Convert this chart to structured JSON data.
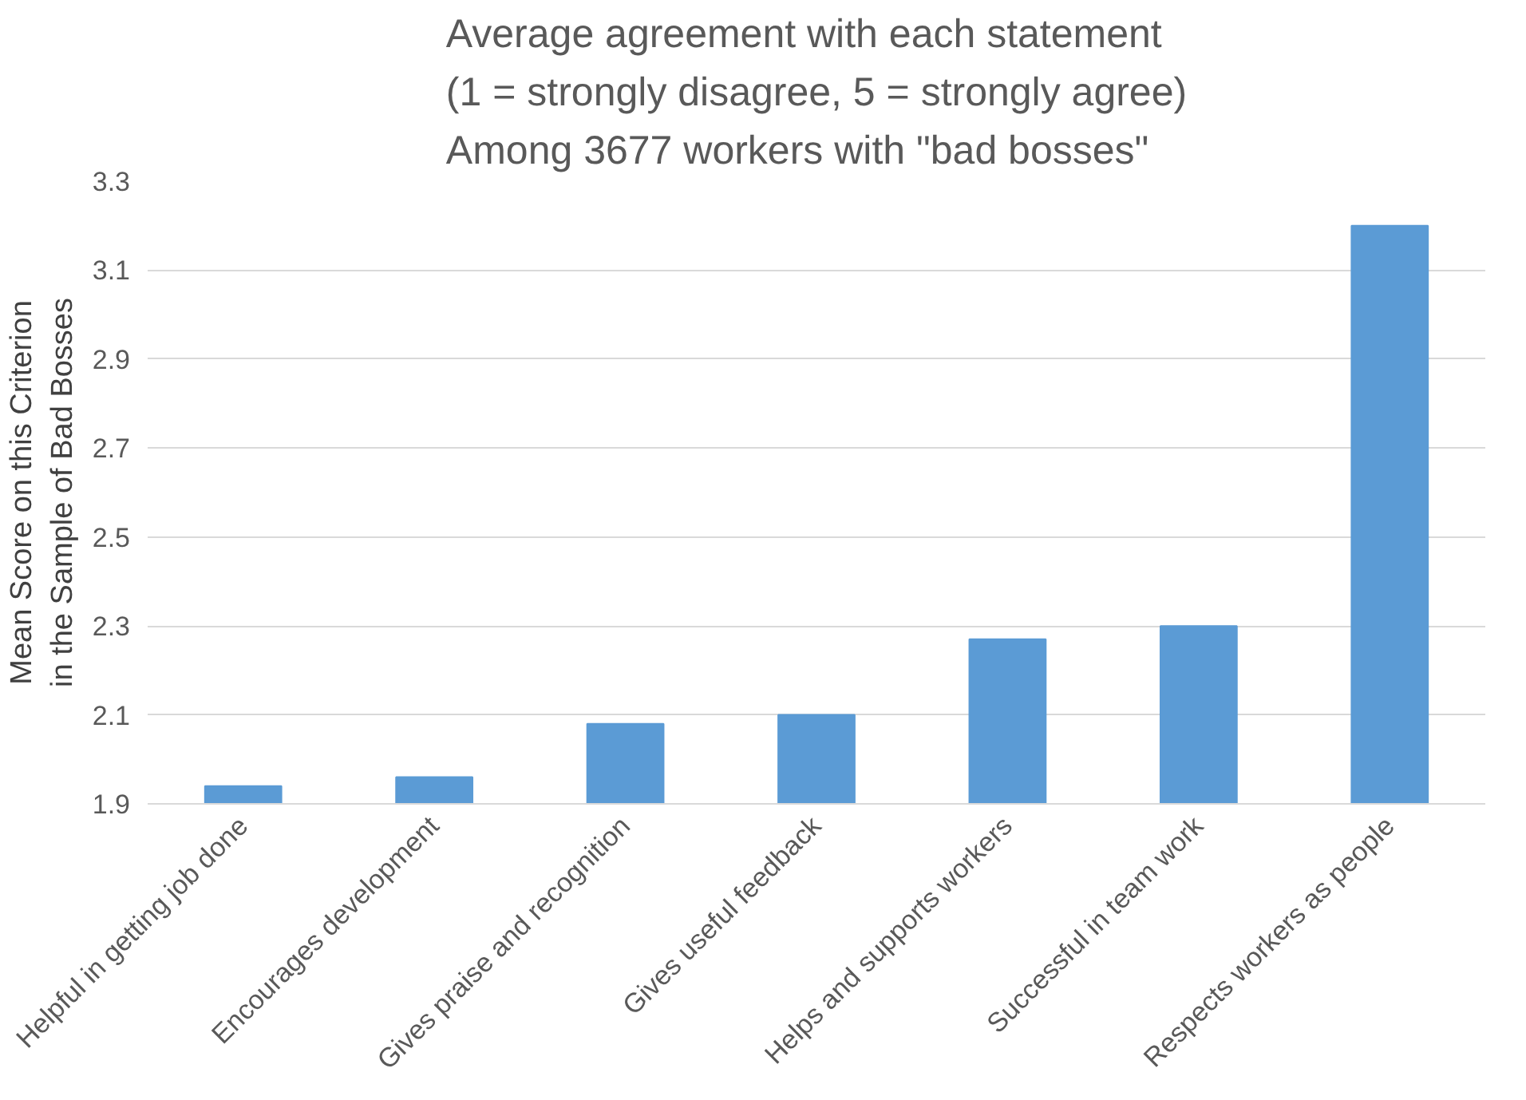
{
  "chart_data": {
    "type": "bar",
    "title": "Average agreement with each statement\n(1 = strongly disagree, 5 = strongly agree)\nAmong 3677 workers with \"bad bosses\"",
    "ylabel": "Mean Score on this Criterion\nin the Sample of Bad Bosses",
    "categories": [
      "Helpful in getting job done",
      "Encourages development",
      "Gives praise and recognition",
      "Gives useful feedback",
      "Helps and supports workers",
      "Successful in team work",
      "Respects workers as people"
    ],
    "values": [
      1.94,
      1.96,
      2.08,
      2.1,
      2.27,
      2.3,
      3.2
    ],
    "color": "#5b9bd5",
    "ylim": [
      1.9,
      3.3
    ],
    "yticks": [
      1.9,
      2.1,
      2.3,
      2.5,
      2.7,
      2.9,
      3.1,
      3.3
    ],
    "grid": "y"
  }
}
